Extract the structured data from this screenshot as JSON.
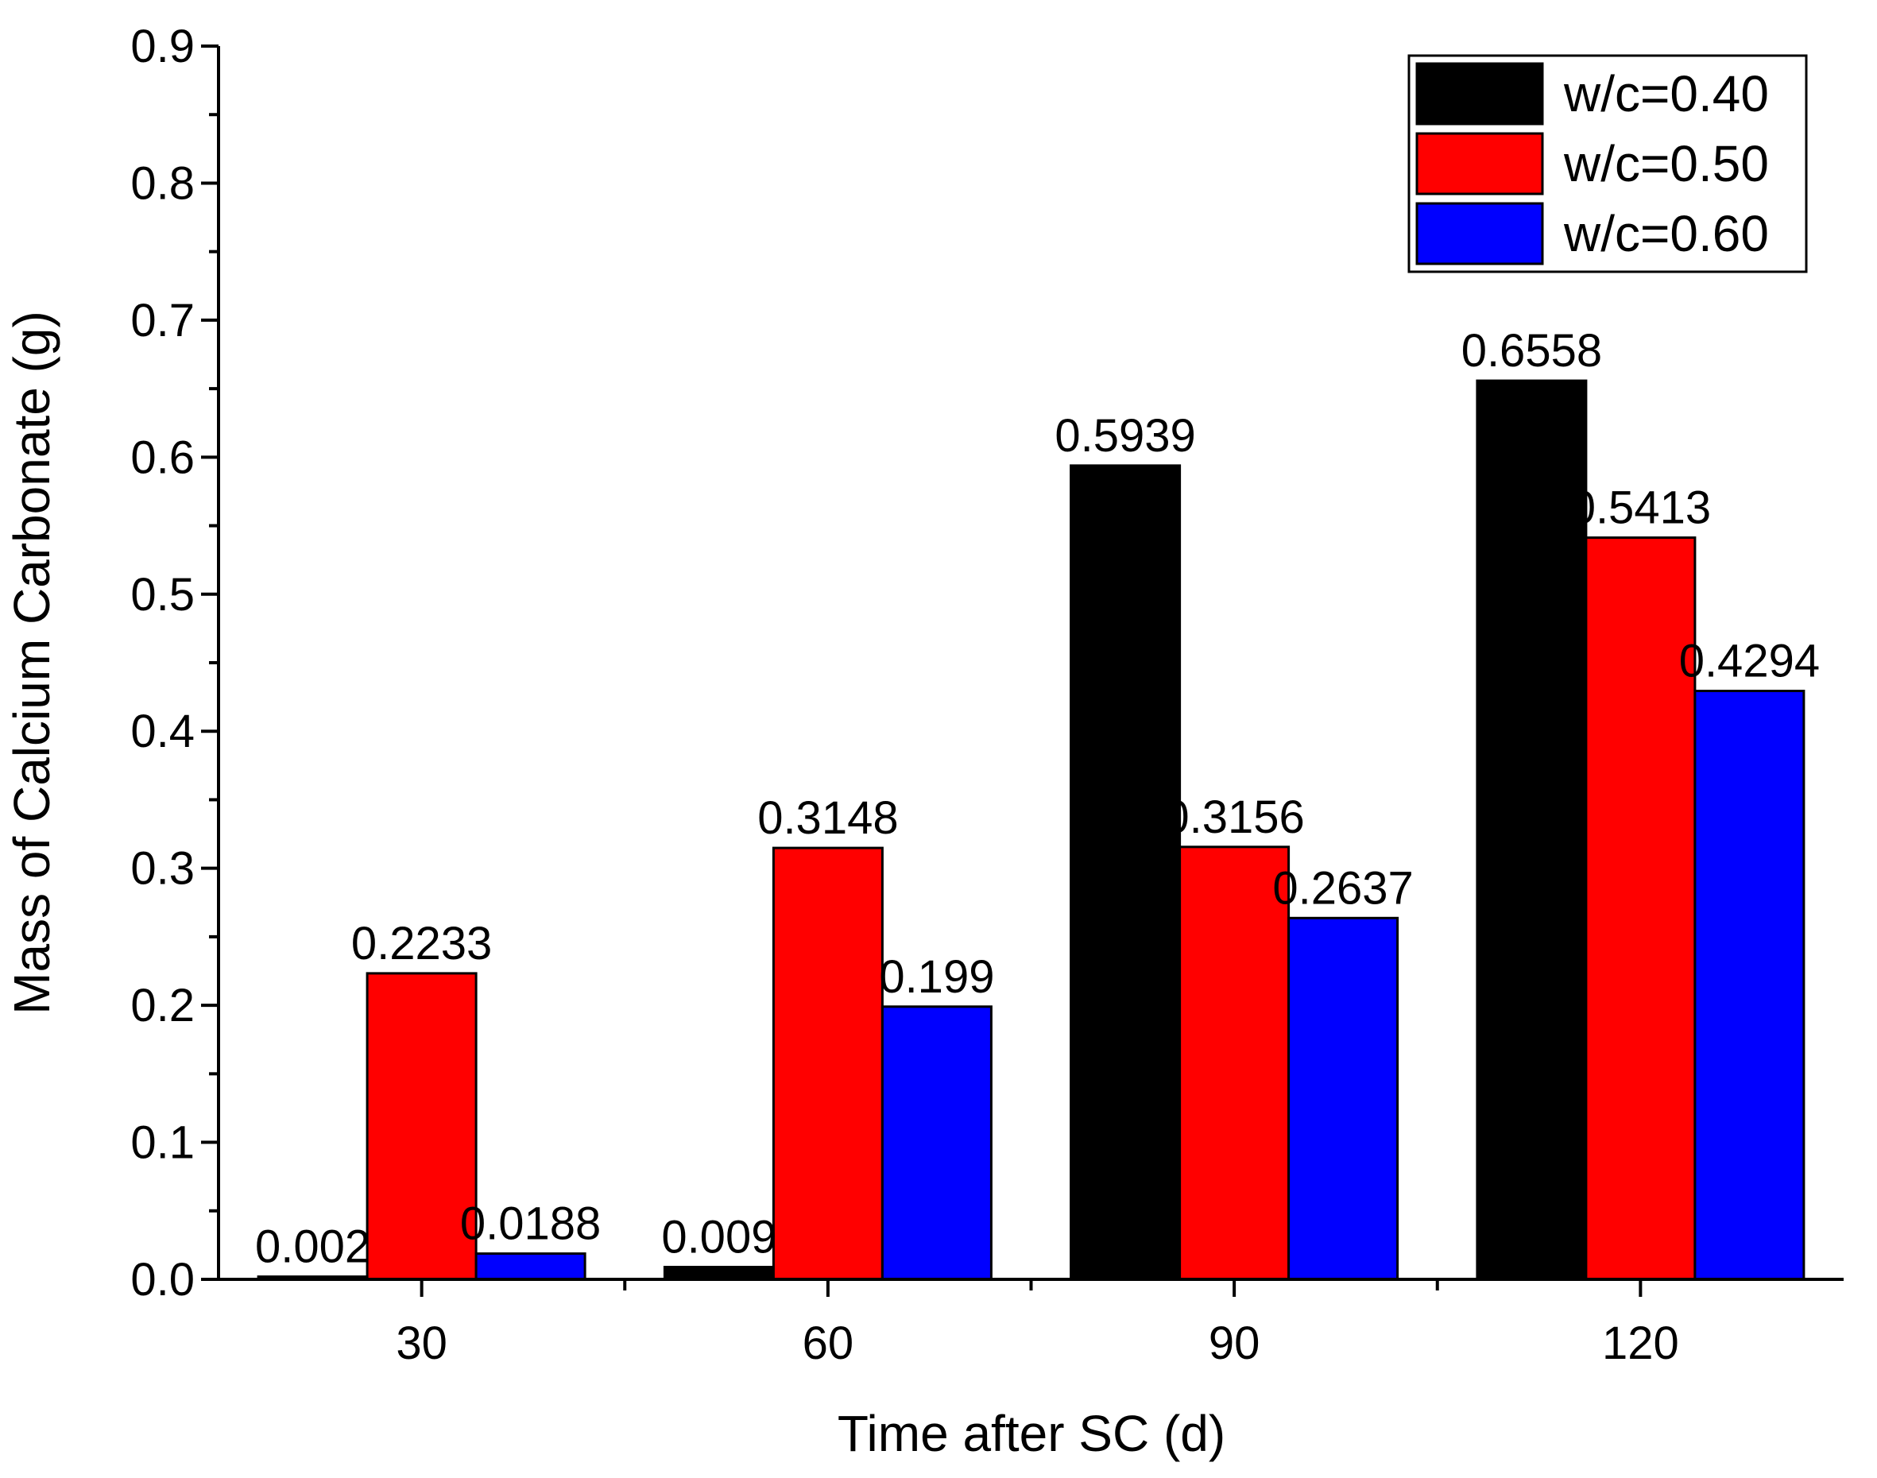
{
  "chart_data": {
    "type": "bar",
    "title": "",
    "xlabel": "Time after SC (d)",
    "ylabel": "Mass of Calcium Carbonate (g)",
    "categories": [
      "30",
      "60",
      "90",
      "120"
    ],
    "ylim": [
      0,
      0.9
    ],
    "yticks": [
      "0.0",
      "0.1",
      "0.2",
      "0.3",
      "0.4",
      "0.5",
      "0.6",
      "0.7",
      "0.8",
      "0.9"
    ],
    "legend_position": "top-right",
    "grid": false,
    "series": [
      {
        "name": "w/c=0.40",
        "color": "#000000",
        "values": [
          0.002,
          0.009,
          0.5939,
          0.6558
        ],
        "labels": [
          "0.002",
          "0.009",
          "0.5939",
          "0.6558"
        ]
      },
      {
        "name": "w/c=0.50",
        "color": "#ff0000",
        "values": [
          0.2233,
          0.3148,
          0.3156,
          0.5413
        ],
        "labels": [
          "0.2233",
          "0.3148",
          "0.3156",
          "0.5413"
        ]
      },
      {
        "name": "w/c=0.60",
        "color": "#0000ff",
        "values": [
          0.0188,
          0.199,
          0.2637,
          0.4294
        ],
        "labels": [
          "0.0188",
          "0.199",
          "0.2637",
          "0.4294"
        ]
      }
    ]
  }
}
